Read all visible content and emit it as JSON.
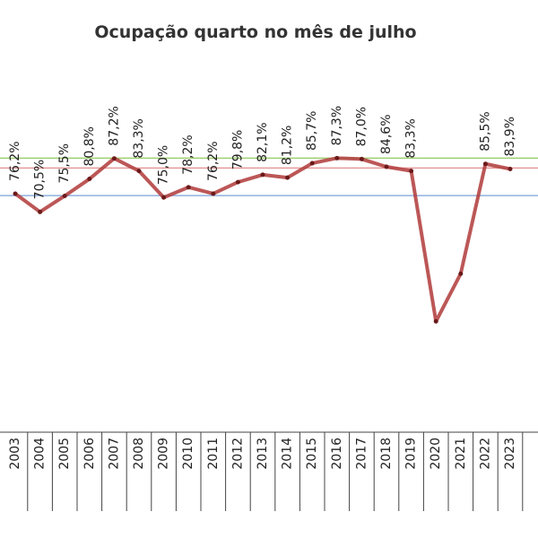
{
  "chart_data": {
    "type": "line",
    "title": "Ocupação quarto no mês de julho",
    "categories": [
      "2003",
      "2004",
      "2005",
      "2006",
      "2007",
      "2008",
      "2009",
      "2010",
      "2011",
      "2012",
      "2013",
      "2014",
      "2015",
      "2016",
      "2017",
      "2018",
      "2019",
      "2020",
      "2021",
      "2022",
      "2023"
    ],
    "series": [
      {
        "name": "Ocupação",
        "color": "#b03a3a",
        "values": [
          76.2,
          70.5,
          75.5,
          80.8,
          87.2,
          83.3,
          75.0,
          78.2,
          76.2,
          79.8,
          82.1,
          81.2,
          85.7,
          87.3,
          87.0,
          84.6,
          83.3,
          36.3,
          51.2,
          85.5,
          83.9
        ],
        "value_labels": [
          "76,2%",
          "70,5%",
          "75,5%",
          "80,8%",
          "87,2%",
          "83,3%",
          "75,0%",
          "78,2%",
          "76,2%",
          "79,8%",
          "82,1%",
          "81,2%",
          "85,7%",
          "87,3%",
          "87,0%",
          "84,6%",
          "83,3%",
          null,
          null,
          "85,5%",
          "83,9%"
        ]
      }
    ],
    "reference_lines": [
      {
        "value": 87.3,
        "color": "#9fcf6f"
      },
      {
        "value": 84.2,
        "color": "#e59a9a"
      },
      {
        "value": 75.6,
        "color": "#8fb0e0"
      }
    ],
    "ylim": [
      0,
      100
    ]
  }
}
